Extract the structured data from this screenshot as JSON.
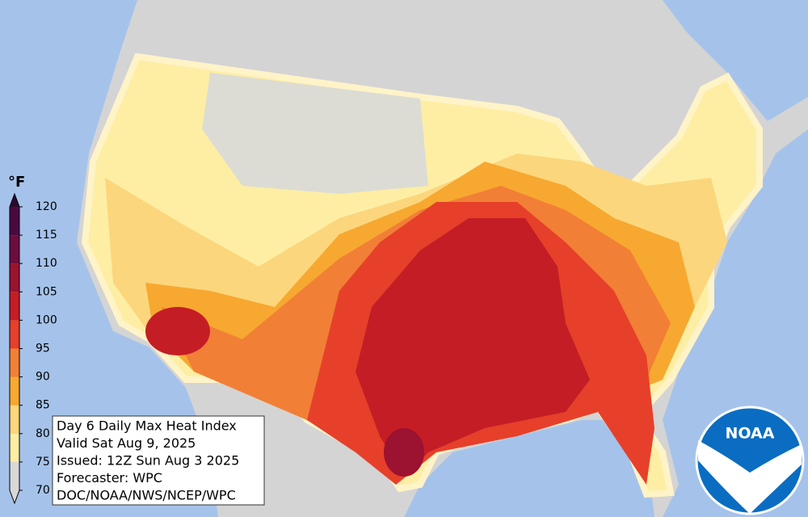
{
  "map": {
    "title_lines": [
      "Day 6 Daily Max Heat Index",
      "Valid Sat Aug 9, 2025",
      "Issued: 12Z Sun Aug 3 2025",
      "Forecaster: WPC",
      "DOC/NOAA/NWS/NCEP/WPC"
    ],
    "logo": "NOAA",
    "legend": {
      "unit": "°F",
      "ticks": [
        70,
        75,
        80,
        85,
        90,
        95,
        100,
        105,
        110,
        115,
        120
      ],
      "colors": [
        "#d8d8d8",
        "#d8d8d8",
        "#fdeea4",
        "#fcd67c",
        "#f7a830",
        "#f27f36",
        "#e6402a",
        "#c51d26",
        "#9c1231",
        "#6c0d40",
        "#4a0a40",
        "#2b0a2f"
      ]
    }
  }
}
